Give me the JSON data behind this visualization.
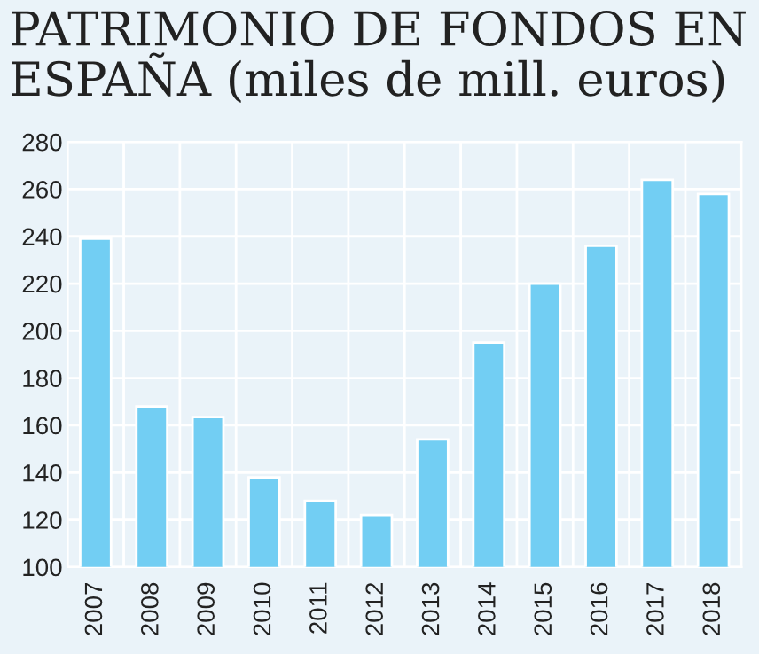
{
  "chart_data": {
    "type": "bar",
    "title": "PATRIMONIO DE FONDOS EN\nESPAÑA (miles de mill. euros)",
    "categories": [
      "2007",
      "2008",
      "2009",
      "2010",
      "2011",
      "2012",
      "2013",
      "2014",
      "2015",
      "2016",
      "2017",
      "2018"
    ],
    "values": [
      239,
      168,
      163.5,
      138,
      128,
      122,
      154,
      195,
      220,
      236,
      264,
      258
    ],
    "color": "#72cef3",
    "ylim": [
      100,
      280
    ],
    "yticks": [
      100,
      120,
      140,
      160,
      180,
      200,
      220,
      240,
      260,
      280
    ],
    "grid": true
  }
}
